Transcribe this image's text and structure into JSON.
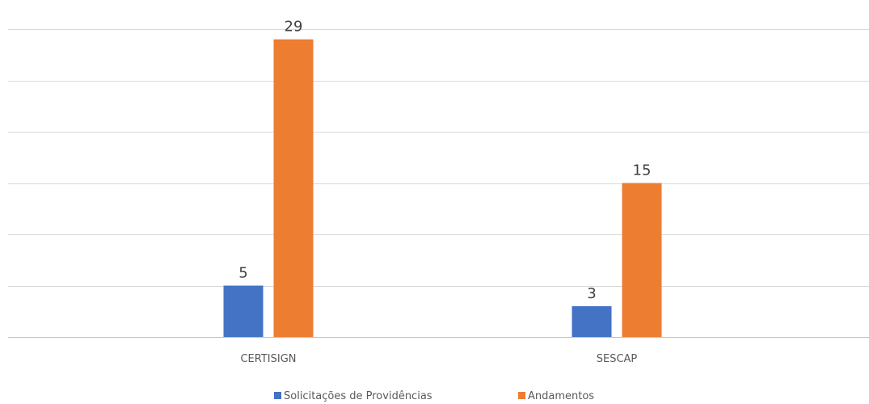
{
  "chart_data": {
    "type": "bar",
    "title": "",
    "xlabel": "",
    "ylabel": "",
    "categories": [
      "CERTISIGN",
      "SESCAP"
    ],
    "series": [
      {
        "name": "Solicitações de Providências",
        "values": [
          5,
          3
        ],
        "color": "#4472c4"
      },
      {
        "name": "Andamentos",
        "values": [
          29,
          15
        ],
        "color": "#ed7d31"
      }
    ],
    "ylim": [
      0,
      30
    ],
    "y_grid_step": 5,
    "grid": true,
    "y_tick_labels_shown": false,
    "data_labels_shown": true,
    "legend_position": "bottom"
  }
}
